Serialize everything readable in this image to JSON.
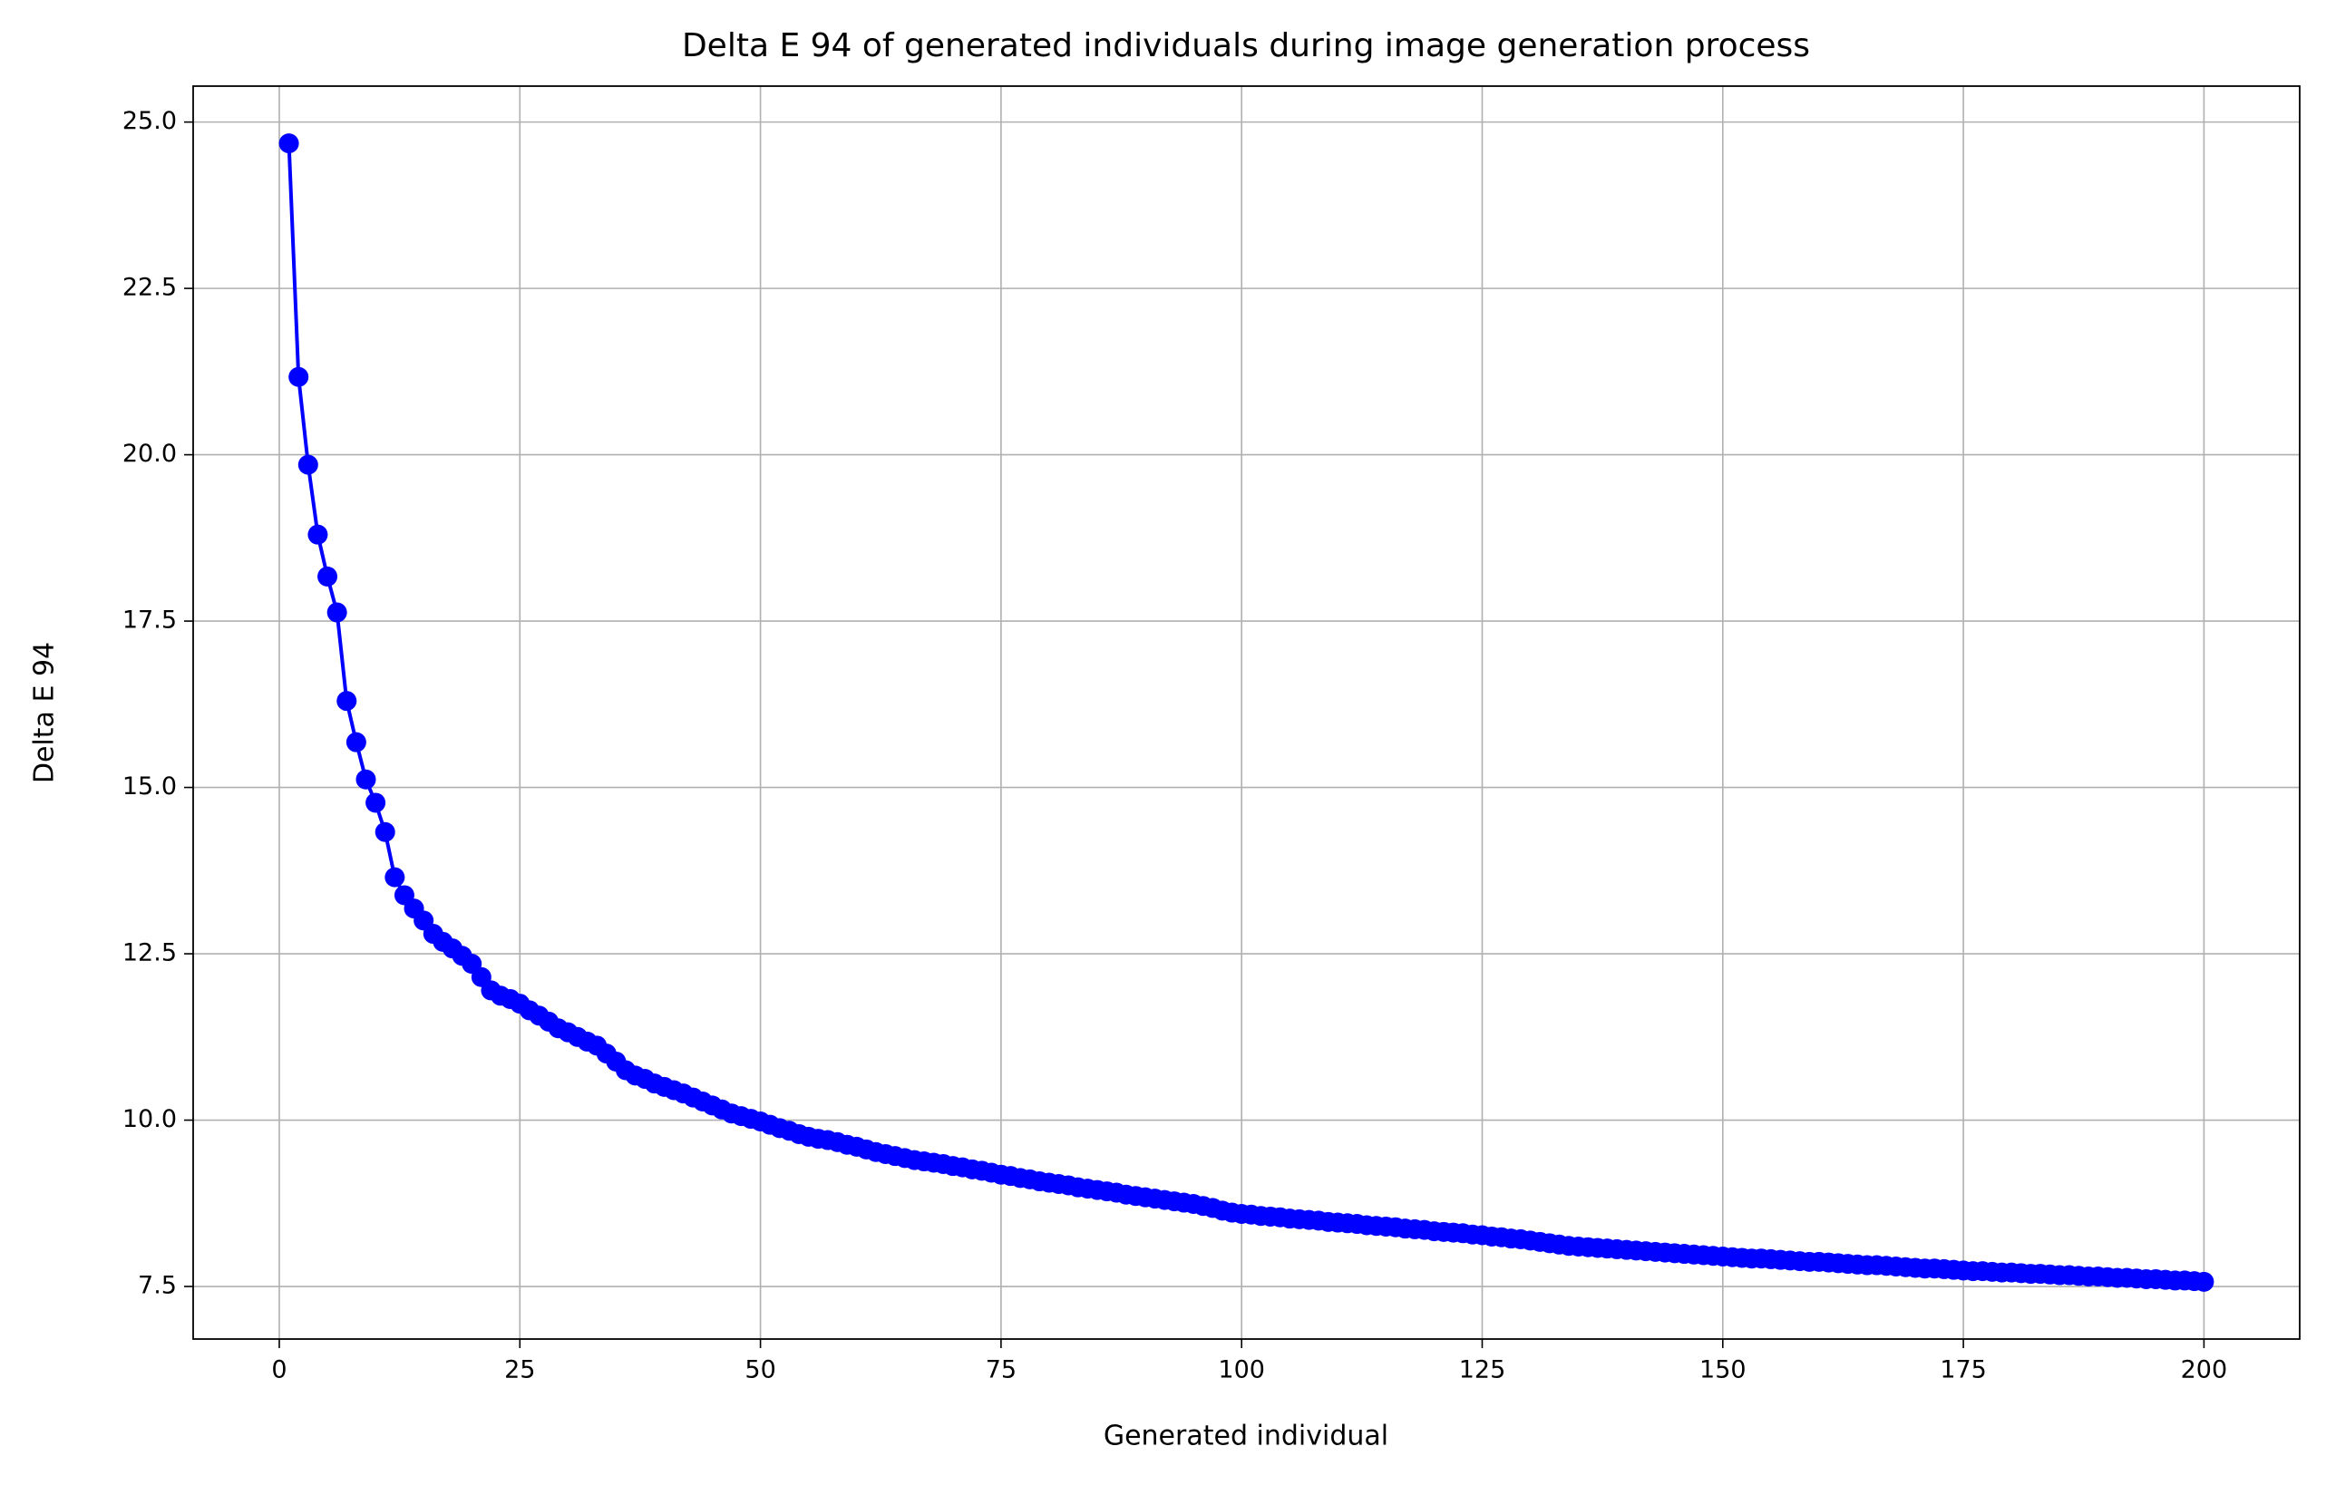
{
  "chart_data": {
    "type": "line",
    "title": "Delta E 94 of generated individuals during image generation process",
    "xlabel": "Generated individual",
    "ylabel": "Delta E 94",
    "x": [
      1,
      2,
      3,
      4,
      5,
      6,
      7,
      8,
      9,
      10,
      11,
      12,
      13,
      14,
      15,
      16,
      17,
      18,
      19,
      20,
      21,
      22,
      23,
      24,
      25,
      26,
      27,
      28,
      29,
      30,
      31,
      32,
      33,
      34,
      35,
      36,
      37,
      38,
      39,
      40,
      41,
      42,
      43,
      44,
      45,
      46,
      47,
      48,
      49,
      50,
      51,
      52,
      53,
      54,
      55,
      56,
      57,
      58,
      59,
      60,
      61,
      62,
      63,
      64,
      65,
      66,
      67,
      68,
      69,
      70,
      71,
      72,
      73,
      74,
      75,
      76,
      77,
      78,
      79,
      80,
      81,
      82,
      83,
      84,
      85,
      86,
      87,
      88,
      89,
      90,
      91,
      92,
      93,
      94,
      95,
      96,
      97,
      98,
      99,
      100,
      101,
      102,
      103,
      104,
      105,
      106,
      107,
      108,
      109,
      110,
      111,
      112,
      113,
      114,
      115,
      116,
      117,
      118,
      119,
      120,
      121,
      122,
      123,
      124,
      125,
      126,
      127,
      128,
      129,
      130,
      131,
      132,
      133,
      134,
      135,
      136,
      137,
      138,
      139,
      140,
      141,
      142,
      143,
      144,
      145,
      146,
      147,
      148,
      149,
      150,
      151,
      152,
      153,
      154,
      155,
      156,
      157,
      158,
      159,
      160,
      161,
      162,
      163,
      164,
      165,
      166,
      167,
      168,
      169,
      170,
      171,
      172,
      173,
      174,
      175,
      176,
      177,
      178,
      179,
      180,
      181,
      182,
      183,
      184,
      185,
      186,
      187,
      188,
      189,
      190,
      191,
      192,
      193,
      194,
      195,
      196,
      197,
      198,
      199,
      200
    ],
    "series": [
      {
        "color": "#0000ff",
        "marker": "o",
        "values": [
          24.68,
          21.17,
          19.85,
          18.8,
          18.17,
          17.63,
          16.3,
          15.68,
          15.12,
          14.77,
          14.33,
          13.65,
          13.38,
          13.18,
          13.0,
          12.8,
          12.68,
          12.58,
          12.47,
          12.35,
          12.15,
          11.95,
          11.87,
          11.82,
          11.75,
          11.65,
          11.57,
          11.48,
          11.38,
          11.32,
          11.25,
          11.18,
          11.12,
          11.0,
          10.88,
          10.75,
          10.67,
          10.62,
          10.55,
          10.5,
          10.45,
          10.4,
          10.34,
          10.28,
          10.22,
          10.16,
          10.1,
          10.06,
          10.02,
          9.98,
          9.93,
          9.88,
          9.84,
          9.79,
          9.75,
          9.72,
          9.7,
          9.67,
          9.63,
          9.6,
          9.56,
          9.52,
          9.49,
          9.46,
          9.43,
          9.4,
          9.38,
          9.36,
          9.34,
          9.31,
          9.29,
          9.26,
          9.24,
          9.21,
          9.18,
          9.16,
          9.13,
          9.11,
          9.08,
          9.06,
          9.04,
          9.02,
          8.99,
          8.97,
          8.95,
          8.93,
          8.91,
          8.88,
          8.86,
          8.84,
          8.82,
          8.8,
          8.78,
          8.76,
          8.74,
          8.71,
          8.68,
          8.64,
          8.61,
          8.59,
          8.58,
          8.56,
          8.55,
          8.54,
          8.52,
          8.51,
          8.5,
          8.49,
          8.47,
          8.46,
          8.45,
          8.44,
          8.42,
          8.41,
          8.4,
          8.39,
          8.37,
          8.36,
          8.35,
          8.33,
          8.32,
          8.31,
          8.3,
          8.28,
          8.27,
          8.25,
          8.24,
          8.22,
          8.21,
          8.19,
          8.17,
          8.15,
          8.13,
          8.11,
          8.1,
          8.09,
          8.08,
          8.07,
          8.06,
          8.05,
          8.04,
          8.03,
          8.02,
          8.01,
          8.0,
          7.99,
          7.98,
          7.97,
          7.96,
          7.95,
          7.94,
          7.93,
          7.92,
          7.92,
          7.91,
          7.9,
          7.89,
          7.88,
          7.87,
          7.87,
          7.86,
          7.85,
          7.84,
          7.83,
          7.82,
          7.82,
          7.81,
          7.8,
          7.79,
          7.78,
          7.77,
          7.77,
          7.76,
          7.75,
          7.74,
          7.73,
          7.73,
          7.72,
          7.71,
          7.71,
          7.7,
          7.69,
          7.69,
          7.68,
          7.67,
          7.67,
          7.66,
          7.65,
          7.65,
          7.64,
          7.63,
          7.63,
          7.62,
          7.61,
          7.61,
          7.6,
          7.59,
          7.59,
          7.58,
          7.57
        ]
      }
    ],
    "xlim": [
      -8.95,
      209.95
    ],
    "ylim": [
      6.71,
      25.54
    ],
    "xticks": [
      0,
      25,
      50,
      75,
      100,
      125,
      150,
      175,
      200
    ],
    "yticks": [
      7.5,
      {
        "value": 10,
        "label": "10.0"
      },
      12.5,
      {
        "value": 15,
        "label": "15.0"
      },
      17.5,
      {
        "value": 20,
        "label": "20.0"
      },
      22.5,
      {
        "value": 25,
        "label": "25.0"
      }
    ],
    "grid": true
  }
}
